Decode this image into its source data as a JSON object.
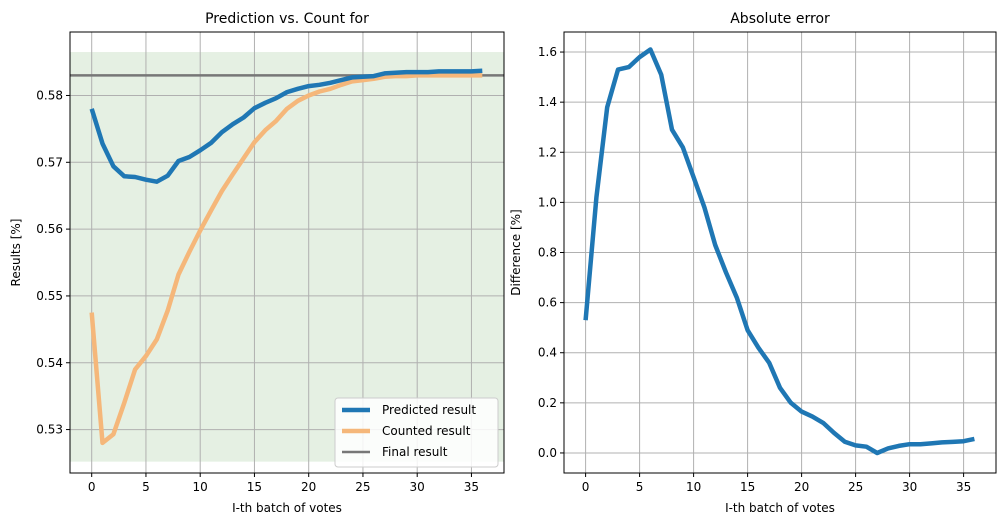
{
  "chart_data": [
    {
      "type": "line",
      "title": "Prediction vs. Count for",
      "xlabel": "I-th batch of votes",
      "ylabel": "Results [%]",
      "xlim": [
        -2,
        38
      ],
      "ylim": [
        0.5235,
        0.5895
      ],
      "xticks": [
        0,
        5,
        10,
        15,
        20,
        25,
        30,
        35
      ],
      "yticks": [
        0.53,
        0.54,
        0.55,
        0.56,
        0.57,
        0.58
      ],
      "ytick_labels": [
        "0.53",
        "0.54",
        "0.55",
        "0.56",
        "0.57",
        "0.58"
      ],
      "grid": true,
      "legend_position": "lower right",
      "shaded_band": {
        "y0": 0.5252,
        "y1": 0.5865,
        "color": "#e5f0e3"
      },
      "hline": {
        "name": "Final result",
        "y": 0.583,
        "color": "#777777"
      },
      "series": [
        {
          "name": "Predicted result",
          "color": "#1f77b4",
          "x": [
            0,
            1,
            2,
            3,
            4,
            5,
            6,
            7,
            8,
            9,
            10,
            11,
            12,
            13,
            14,
            15,
            16,
            17,
            18,
            19,
            20,
            21,
            22,
            23,
            24,
            25,
            26,
            27,
            28,
            29,
            30,
            31,
            32,
            33,
            34,
            35,
            36
          ],
          "values": [
            0.578,
            0.5728,
            0.5694,
            0.5679,
            0.5678,
            0.5674,
            0.5671,
            0.568,
            0.5702,
            0.5708,
            0.5718,
            0.5729,
            0.5745,
            0.5757,
            0.5767,
            0.5781,
            0.5789,
            0.5796,
            0.5805,
            0.581,
            0.5814,
            0.5816,
            0.5819,
            0.5823,
            0.5827,
            0.5828,
            0.5829,
            0.5833,
            0.5834,
            0.5835,
            0.5835,
            0.5835,
            0.5836,
            0.5836,
            0.5836,
            0.5836,
            0.5837
          ]
        },
        {
          "name": "Counted result",
          "color": "#f5b77a",
          "x": [
            0,
            1,
            2,
            3,
            4,
            5,
            6,
            7,
            8,
            9,
            10,
            11,
            12,
            13,
            14,
            15,
            16,
            17,
            18,
            19,
            20,
            21,
            22,
            23,
            24,
            25,
            26,
            27,
            28,
            29,
            30,
            31,
            32,
            33,
            34,
            35,
            36
          ],
          "values": [
            0.5475,
            0.528,
            0.5293,
            0.534,
            0.539,
            0.541,
            0.5435,
            0.5478,
            0.5532,
            0.5566,
            0.5598,
            0.5628,
            0.5657,
            0.5682,
            0.5706,
            0.573,
            0.5748,
            0.5762,
            0.578,
            0.5792,
            0.58,
            0.5806,
            0.581,
            0.5816,
            0.5821,
            0.5823,
            0.5825,
            0.5828,
            0.5829,
            0.5829,
            0.583,
            0.583,
            0.583,
            0.583,
            0.583,
            0.583,
            0.583
          ]
        }
      ]
    },
    {
      "type": "line",
      "title": "Absolute error",
      "xlabel": "I-th batch of votes",
      "ylabel": "Difference [%]",
      "xlim": [
        -2,
        38
      ],
      "ylim": [
        -0.08,
        1.68
      ],
      "xticks": [
        0,
        5,
        10,
        15,
        20,
        25,
        30,
        35
      ],
      "yticks": [
        0.0,
        0.2,
        0.4,
        0.6,
        0.8,
        1.0,
        1.2,
        1.4,
        1.6
      ],
      "ytick_labels": [
        "0.0",
        "0.2",
        "0.4",
        "0.6",
        "0.8",
        "1.0",
        "1.2",
        "1.4",
        "1.6"
      ],
      "grid": true,
      "series": [
        {
          "color": "#1f77b4",
          "x": [
            0,
            1,
            2,
            3,
            4,
            5,
            6,
            7,
            8,
            9,
            10,
            11,
            12,
            13,
            14,
            15,
            16,
            17,
            18,
            19,
            20,
            21,
            22,
            23,
            24,
            25,
            26,
            27,
            28,
            29,
            30,
            31,
            32,
            33,
            34,
            35,
            36
          ],
          "values": [
            0.53,
            1.02,
            1.38,
            1.53,
            1.54,
            1.58,
            1.61,
            1.51,
            1.29,
            1.22,
            1.1,
            0.98,
            0.83,
            0.72,
            0.62,
            0.49,
            0.42,
            0.36,
            0.26,
            0.2,
            0.165,
            0.145,
            0.12,
            0.08,
            0.045,
            0.03,
            0.025,
            0.0,
            0.018,
            0.028,
            0.035,
            0.035,
            0.038,
            0.042,
            0.044,
            0.047,
            0.056
          ]
        }
      ]
    }
  ]
}
